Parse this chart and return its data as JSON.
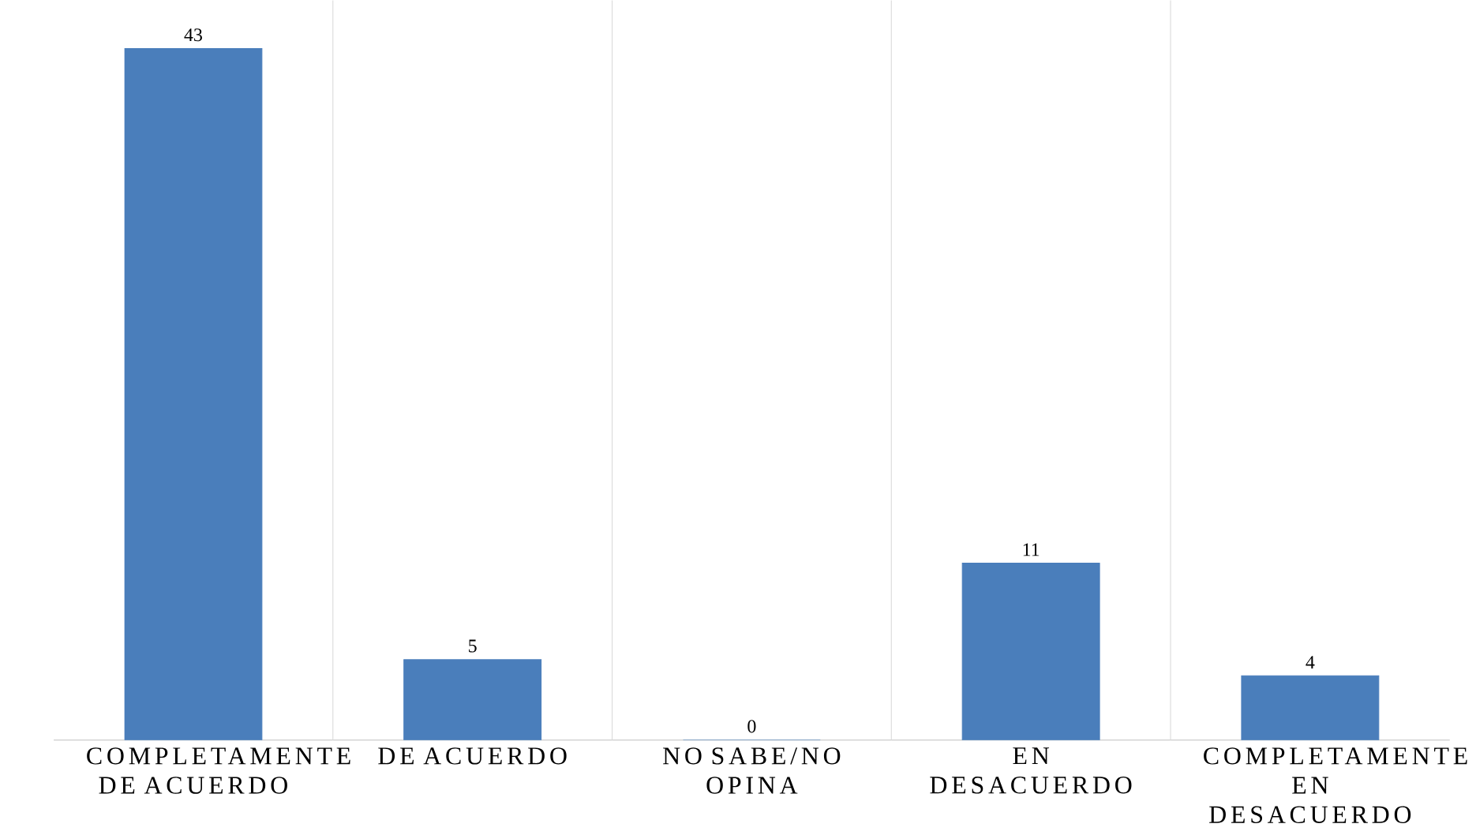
{
  "chart_data": {
    "type": "bar",
    "categories": [
      "COMPLETAMENTE DE ACUERDO",
      "DE ACUERDO",
      "NO SABE/NO OPINA",
      "EN DESACUERDO",
      "COMPLETAMENTE EN DESACUERDO"
    ],
    "values": [
      43,
      5,
      0,
      11,
      4
    ],
    "color": "#4a7ebb",
    "data_labels": true,
    "ylim": [
      0,
      46
    ]
  }
}
